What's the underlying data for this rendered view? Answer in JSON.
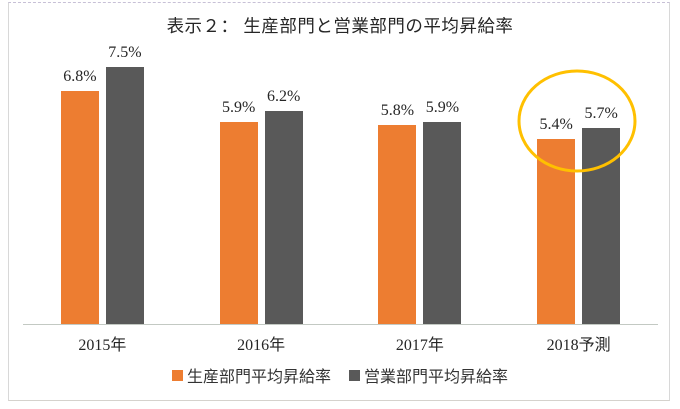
{
  "chart_data": {
    "type": "bar",
    "title": "表示２： 生産部門と営業部門の平均昇給率",
    "categories": [
      "2015年",
      "2016年",
      "2017年",
      "2018予測"
    ],
    "series": [
      {
        "name": "生産部門平均昇給率",
        "color": "#ED7D31",
        "values": [
          6.8,
          5.9,
          5.8,
          5.4
        ],
        "labels": [
          "6.8%",
          "5.9%",
          "5.8%",
          "5.4%"
        ]
      },
      {
        "name": "営業部門平均昇給率",
        "color": "#595959",
        "values": [
          7.5,
          6.2,
          5.9,
          5.7
        ],
        "labels": [
          "7.5%",
          "6.2%",
          "5.9%",
          "5.7%"
        ]
      }
    ],
    "ylim": [
      0,
      9.45
    ],
    "grid": false,
    "value_labels_shown": true,
    "legend_position": "bottom",
    "annotation": {
      "type": "ellipse",
      "target_category": "2018予測",
      "color": "#FFC000"
    }
  },
  "colors": {
    "axis_line": "#C3C9C3",
    "frame_border": "#D8D8D8",
    "frame_border_top": "#C7C0D6",
    "text": "#262626"
  }
}
